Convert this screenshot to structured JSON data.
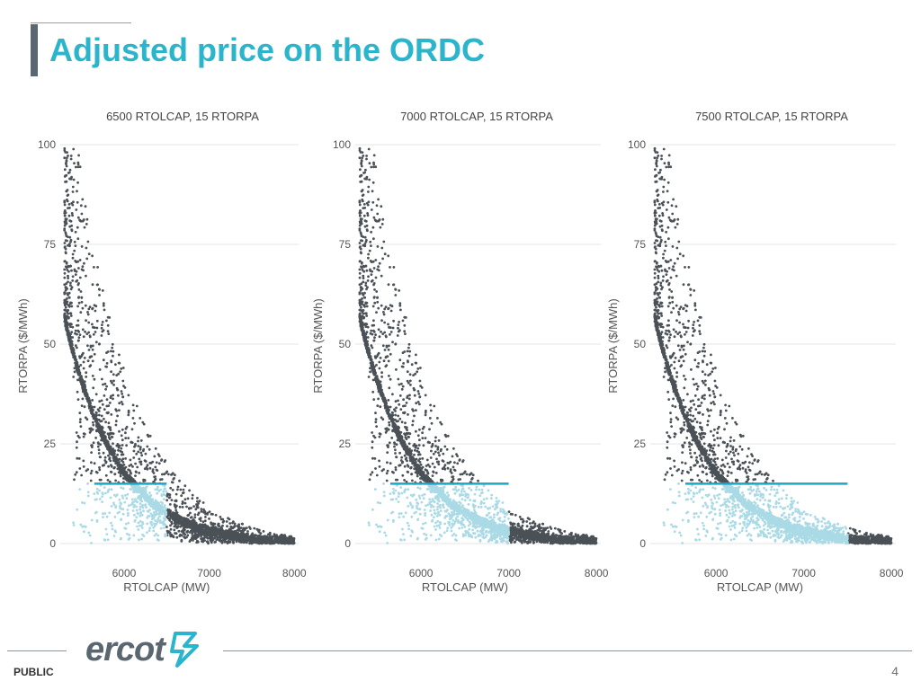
{
  "title": "Adjusted price on the ORDC",
  "footer": {
    "classification": "PUBLIC",
    "page_number": "4",
    "logo_text": "ercot"
  },
  "colors": {
    "accent": "#2bb5cc",
    "dark_points": "#4a5157",
    "light_points": "#a9dae6",
    "adder_line": "#1aa6c6",
    "grid": "#e6e6e6"
  },
  "chart_data": [
    {
      "type": "scatter",
      "title": "6500 RTOLCAP, 15 RTORPA",
      "xlabel": "RTOLCAP (MW)",
      "ylabel": "RTORPA ($/MWh)",
      "xlim": [
        5250,
        8050
      ],
      "ylim": [
        0,
        100
      ],
      "x_ticks": [
        6000,
        7000,
        8000
      ],
      "y_ticks": [
        0,
        25,
        50,
        75,
        100
      ],
      "grid": "horizontal",
      "legend": "none",
      "adjusted_rtolcap": 6500,
      "adjusted_rtorpa": 15,
      "horizontal_line": {
        "y": 15,
        "x_from": 5650,
        "x_to": 6500
      },
      "series": [
        {
          "color": "#4a5157",
          "points": "original ORDC price points: dense curve decaying from ~57 $/MWh at 5300 MW to ~0 at 8000 MW, with scattered points up to 100 $/MWh above the curve"
        },
        {
          "color": "#a9dae6",
          "points": "adjusted points below 15 $/MWh for RTOLCAP below 6500 MW"
        }
      ]
    },
    {
      "type": "scatter",
      "title": "7000 RTOLCAP, 15 RTORPA",
      "xlabel": "RTOLCAP (MW)",
      "ylabel": "RTORPA ($/MWh)",
      "xlim": [
        5250,
        8050
      ],
      "ylim": [
        0,
        100
      ],
      "x_ticks": [
        6000,
        7000,
        8000
      ],
      "y_ticks": [
        0,
        25,
        50,
        75,
        100
      ],
      "grid": "horizontal",
      "legend": "none",
      "adjusted_rtolcap": 7000,
      "adjusted_rtorpa": 15,
      "horizontal_line": {
        "y": 15,
        "x_from": 5650,
        "x_to": 7000
      }
    },
    {
      "type": "scatter",
      "title": "7500 RTOLCAP, 15 RTORPA",
      "xlabel": "RTOLCAP (MW)",
      "ylabel": "RTORPA ($/MWh)",
      "xlim": [
        5250,
        8050
      ],
      "ylim": [
        0,
        100
      ],
      "x_ticks": [
        6000,
        7000,
        8000
      ],
      "y_ticks": [
        0,
        25,
        50,
        75,
        100
      ],
      "grid": "horizontal",
      "legend": "none",
      "adjusted_rtolcap": 7500,
      "adjusted_rtorpa": 15,
      "horizontal_line": {
        "y": 15,
        "x_from": 5650,
        "x_to": 7500
      }
    }
  ]
}
